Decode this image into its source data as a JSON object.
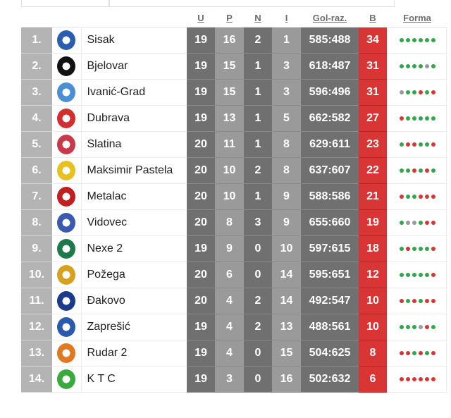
{
  "headers": {
    "u": "U",
    "p": "P",
    "n": "N",
    "i": "I",
    "gol": "Gol-raz.",
    "b": "B",
    "forma": "Forma"
  },
  "colors": {
    "win": "#2ea84a",
    "draw": "#9a9a9a",
    "loss": "#d93535",
    "points_bg": "#d93535",
    "rank_bg": "#b4b4b4"
  },
  "teams": [
    {
      "rank": "1.",
      "name": "Sisak",
      "u": "19",
      "p": "16",
      "n": "2",
      "i": "1",
      "gol": "585:488",
      "b": "34",
      "form": [
        "W",
        "W",
        "W",
        "W",
        "W",
        "W"
      ],
      "logo_icon": "sisak-logo-icon",
      "logo_color": "#2a5db0"
    },
    {
      "rank": "2.",
      "name": "Bjelovar",
      "u": "19",
      "p": "15",
      "n": "1",
      "i": "3",
      "gol": "618:487",
      "b": "31",
      "form": [
        "W",
        "W",
        "W",
        "W",
        "D",
        "W"
      ],
      "logo_icon": "bjelovar-logo-icon",
      "logo_color": "#111111"
    },
    {
      "rank": "3.",
      "name": "Ivanić-Grad",
      "u": "19",
      "p": "15",
      "n": "1",
      "i": "3",
      "gol": "596:496",
      "b": "31",
      "form": [
        "D",
        "W",
        "W",
        "L",
        "W",
        "L"
      ],
      "logo_icon": "ivanic-grad-logo-icon",
      "logo_color": "#4a8fd6"
    },
    {
      "rank": "4.",
      "name": "Dubrava",
      "u": "19",
      "p": "13",
      "n": "1",
      "i": "5",
      "gol": "662:582",
      "b": "27",
      "form": [
        "L",
        "W",
        "W",
        "W",
        "W",
        "W"
      ],
      "logo_icon": "dubrava-logo-icon",
      "logo_color": "#d23030"
    },
    {
      "rank": "5.",
      "name": "Slatina",
      "u": "20",
      "p": "11",
      "n": "1",
      "i": "8",
      "gol": "629:611",
      "b": "23",
      "form": [
        "W",
        "L",
        "L",
        "W",
        "W",
        "L"
      ],
      "logo_icon": "slatina-logo-icon",
      "logo_color": "#c83a4a"
    },
    {
      "rank": "6.",
      "name": "Maksimir Pastela",
      "u": "20",
      "p": "10",
      "n": "2",
      "i": "8",
      "gol": "637:607",
      "b": "22",
      "form": [
        "W",
        "W",
        "L",
        "W",
        "L",
        "W"
      ],
      "logo_icon": "maksimir-pastela-logo-icon",
      "logo_color": "#e8c020"
    },
    {
      "rank": "7.",
      "name": "Metalac",
      "u": "20",
      "p": "10",
      "n": "1",
      "i": "9",
      "gol": "588:586",
      "b": "21",
      "form": [
        "L",
        "W",
        "W",
        "L",
        "L",
        "L"
      ],
      "logo_icon": "metalac-logo-icon",
      "logo_color": "#c02020"
    },
    {
      "rank": "8.",
      "name": "Vidovec",
      "u": "20",
      "p": "8",
      "n": "3",
      "i": "9",
      "gol": "655:660",
      "b": "19",
      "form": [
        "W",
        "D",
        "D",
        "W",
        "L",
        "L"
      ],
      "logo_icon": "vidovec-logo-icon",
      "logo_color": "#3a5ab0"
    },
    {
      "rank": "9.",
      "name": "Nexe 2",
      "u": "19",
      "p": "9",
      "n": "0",
      "i": "10",
      "gol": "597:615",
      "b": "18",
      "form": [
        "W",
        "L",
        "W",
        "W",
        "W",
        "L"
      ],
      "logo_icon": "nexe-logo-icon",
      "logo_color": "#1e7a4a"
    },
    {
      "rank": "10.",
      "name": "Požega",
      "u": "20",
      "p": "6",
      "n": "0",
      "i": "14",
      "gol": "595:651",
      "b": "12",
      "form": [
        "W",
        "W",
        "W",
        "W",
        "W",
        "L"
      ],
      "logo_icon": "pozega-logo-icon",
      "logo_color": "#d8a020"
    },
    {
      "rank": "11.",
      "name": "Đakovo",
      "u": "20",
      "p": "4",
      "n": "2",
      "i": "14",
      "gol": "492:547",
      "b": "10",
      "form": [
        "L",
        "W",
        "L",
        "W",
        "L",
        "L"
      ],
      "logo_icon": "dakovo-logo-icon",
      "logo_color": "#1a3a8a"
    },
    {
      "rank": "12.",
      "name": "Zaprešić",
      "u": "19",
      "p": "4",
      "n": "2",
      "i": "13",
      "gol": "488:561",
      "b": "10",
      "form": [
        "W",
        "W",
        "W",
        "D",
        "L",
        "W"
      ],
      "logo_icon": "zapresic-logo-icon",
      "logo_color": "#2a5ab0"
    },
    {
      "rank": "13.",
      "name": "Rudar 2",
      "u": "19",
      "p": "4",
      "n": "0",
      "i": "15",
      "gol": "504:625",
      "b": "8",
      "form": [
        "L",
        "L",
        "W",
        "L",
        "W",
        "L"
      ],
      "logo_icon": "rudar-logo-icon",
      "logo_color": "#e07a20"
    },
    {
      "rank": "14.",
      "name": "K T C",
      "u": "19",
      "p": "3",
      "n": "0",
      "i": "16",
      "gol": "502:632",
      "b": "6",
      "form": [
        "L",
        "L",
        "L",
        "L",
        "L",
        "L"
      ],
      "logo_icon": "ktc-logo-icon",
      "logo_color": "#3aaa40"
    }
  ]
}
